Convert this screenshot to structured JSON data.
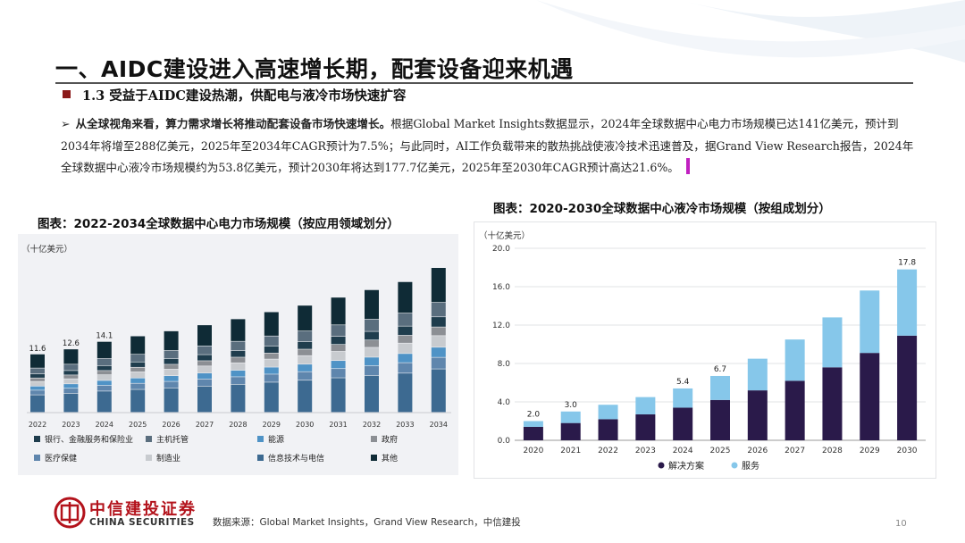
{
  "header": {
    "title": "一、AIDC建设进入高速增长期，配套设备迎来机遇",
    "section": "1.3 受益于AIDC建设热潮，供配电与液冷市场快速扩容"
  },
  "body": {
    "lead_bold": "从全球视角来看，算力需求增长将推动配套设备市场快速增长。",
    "text": "根据Global Market Insights数据显示，2024年全球数据中心电力市场规模已达141亿美元，预计到2034年将增至288亿美元，2025年至2034年CAGR预计为7.5%；与此同时，AI工作负载带来的散热挑战使液冷技术迅速普及，据Grand View Research报告，2024年全球数据中心液冷市场规模约为53.8亿美元，预计2030年将达到177.7亿美元，2025年至2030年CAGR预计高达21.6%。"
  },
  "chart_data": [
    {
      "type": "bar",
      "stacked": true,
      "title": "图表：2022-2034全球数据中心电力市场规模（按应用领域划分）",
      "unit": "（十亿美元）",
      "categories": [
        "2022",
        "2023",
        "2024",
        "2025",
        "2026",
        "2027",
        "2028",
        "2029",
        "2030",
        "2031",
        "2032",
        "2033",
        "2034"
      ],
      "totals": [
        11.6,
        12.6,
        14.1,
        15.2,
        16.2,
        17.4,
        18.6,
        20.0,
        21.3,
        22.9,
        24.4,
        26.0,
        28.8
      ],
      "total_labels": [
        "11.6",
        "12.6",
        "14.1"
      ],
      "series_order": [
        "信息技术与电信",
        "医疗保健",
        "能源",
        "制造业",
        "政府",
        "银行、金融服务和保险业",
        "主机托管",
        "其他"
      ],
      "shares": [
        0.3,
        0.08,
        0.07,
        0.08,
        0.06,
        0.07,
        0.1,
        0.24
      ],
      "legend": [
        "银行、金融服务和保险业",
        "主机托管",
        "能源",
        "政府",
        "医疗保健",
        "制造业",
        "信息技术与电信",
        "其他"
      ],
      "colors": {
        "银行、金融服务和保险业": "#1f3d4d",
        "主机托管": "#5a6e7e",
        "能源": "#4f93c6",
        "政府": "#8c8f94",
        "医疗保健": "#5f86ad",
        "制造业": "#c8cbcf",
        "信息技术与电信": "#3d6a91",
        "其他": "#0f2b36"
      },
      "ylim": [
        0,
        32
      ],
      "legend_position": "bottom"
    },
    {
      "type": "bar",
      "stacked": true,
      "title": "图表：2020-2030全球数据中心液冷市场规模（按组成划分）",
      "unit": "（十亿美元）",
      "categories": [
        "2020",
        "2021",
        "2022",
        "2023",
        "2024",
        "2025",
        "2026",
        "2027",
        "2028",
        "2029",
        "2030"
      ],
      "series": [
        {
          "name": "解决方案",
          "color": "#2a1a4a",
          "values": [
            1.4,
            1.8,
            2.2,
            2.7,
            3.4,
            4.2,
            5.2,
            6.2,
            7.6,
            9.1,
            10.9
          ]
        },
        {
          "name": "服务",
          "color": "#86c7ea",
          "values": [
            0.6,
            1.2,
            1.5,
            1.8,
            2.0,
            2.5,
            3.3,
            4.3,
            5.2,
            6.5,
            6.9
          ]
        }
      ],
      "totals": [
        2.0,
        3.0,
        3.7,
        4.5,
        5.4,
        6.7,
        8.5,
        10.5,
        12.8,
        15.6,
        17.8
      ],
      "total_labels": [
        "2.0",
        "3.0",
        "",
        "",
        "5.4",
        "6.7",
        "",
        "",
        "",
        "",
        "17.8"
      ],
      "yticks": [
        "0.0",
        "4.0",
        "8.0",
        "12.0",
        "16.0",
        "20.0"
      ],
      "ylim": [
        0,
        20
      ],
      "legend_position": "bottom"
    }
  ],
  "footer": {
    "logo_cn": "中信建投证券",
    "logo_en": "CHINA SECURITIES",
    "source": "数据来源：Global  Market Insights，Grand  View Research，中信建投",
    "page_number": "10"
  }
}
